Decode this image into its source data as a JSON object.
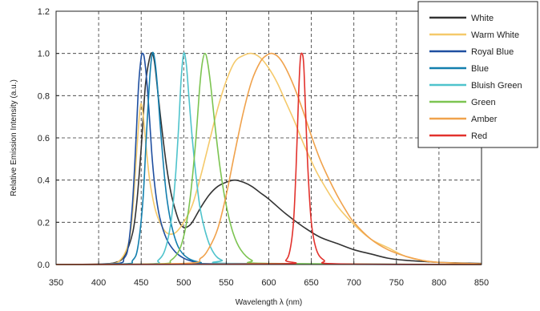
{
  "chart_data": {
    "type": "line",
    "xlabel": "Wavelength λ (nm)",
    "ylabel": "Relative Emission Intensity (a.u.)",
    "xlim": [
      350,
      850
    ],
    "ylim": [
      0,
      1.2
    ],
    "xticks": [
      350,
      400,
      450,
      500,
      550,
      600,
      650,
      700,
      750,
      800,
      850
    ],
    "xtick_labels": [
      "350",
      "400",
      "450",
      "500",
      "550",
      "600",
      "650",
      "700",
      "750",
      "800",
      "850"
    ],
    "yticks": [
      0,
      0.2,
      0.4,
      0.6,
      0.8,
      1.0,
      1.2
    ],
    "ytick_labels": [
      "0.0",
      "0.2",
      "0.4",
      "0.6",
      "0.8",
      "1.0",
      "1.2"
    ],
    "grid": true,
    "legend_position": "top-right",
    "series": [
      {
        "name": "White",
        "color": "#333333",
        "x": [
          350,
          400,
          420,
          430,
          440,
          445,
          450,
          455,
          460,
          463,
          466,
          470,
          475,
          480,
          485,
          490,
          495,
          500,
          505,
          510,
          520,
          530,
          540,
          550,
          560,
          570,
          580,
          590,
          600,
          620,
          640,
          660,
          680,
          700,
          720,
          740,
          760,
          780,
          800,
          850
        ],
        "y": [
          0.0,
          0.002,
          0.01,
          0.04,
          0.15,
          0.3,
          0.55,
          0.85,
          0.98,
          1.0,
          0.95,
          0.8,
          0.62,
          0.46,
          0.34,
          0.26,
          0.2,
          0.175,
          0.18,
          0.2,
          0.27,
          0.33,
          0.37,
          0.39,
          0.4,
          0.39,
          0.37,
          0.34,
          0.31,
          0.24,
          0.18,
          0.13,
          0.1,
          0.07,
          0.05,
          0.03,
          0.02,
          0.015,
          0.01,
          0.005
        ]
      },
      {
        "name": "Warm White",
        "color": "#f5c96a",
        "x": [
          350,
          410,
          425,
          435,
          440,
          445,
          449,
          452,
          456,
          460,
          466,
          472,
          480,
          490,
          500,
          510,
          520,
          530,
          540,
          550,
          560,
          570,
          580,
          590,
          600,
          610,
          620,
          630,
          640,
          650,
          660,
          680,
          700,
          720,
          740,
          760,
          780,
          800,
          850
        ],
        "y": [
          0.0,
          0.003,
          0.02,
          0.1,
          0.25,
          0.55,
          0.75,
          0.72,
          0.55,
          0.4,
          0.27,
          0.2,
          0.15,
          0.15,
          0.2,
          0.28,
          0.42,
          0.58,
          0.74,
          0.87,
          0.96,
          0.99,
          1.0,
          0.98,
          0.93,
          0.86,
          0.77,
          0.68,
          0.58,
          0.49,
          0.41,
          0.28,
          0.19,
          0.12,
          0.08,
          0.04,
          0.02,
          0.01,
          0.003
        ]
      },
      {
        "name": "Royal Blue",
        "color": "#1f4fa0",
        "x": [
          350,
          420,
          430,
          435,
          440,
          444,
          447,
          450,
          452,
          454,
          457,
          460,
          463,
          467,
          472,
          480,
          490,
          500,
          510,
          520,
          540,
          850
        ],
        "y": [
          0.0,
          0.004,
          0.03,
          0.09,
          0.3,
          0.6,
          0.85,
          0.98,
          1.0,
          0.97,
          0.85,
          0.68,
          0.5,
          0.34,
          0.22,
          0.12,
          0.06,
          0.03,
          0.015,
          0.008,
          0.003,
          0.0
        ]
      },
      {
        "name": "Blue",
        "color": "#137fae",
        "x": [
          350,
          430,
          440,
          446,
          452,
          456,
          460,
          463,
          466,
          469,
          472,
          476,
          480,
          486,
          494,
          505,
          520,
          540,
          850
        ],
        "y": [
          0.0,
          0.003,
          0.02,
          0.08,
          0.3,
          0.6,
          0.88,
          1.0,
          0.97,
          0.85,
          0.68,
          0.48,
          0.32,
          0.18,
          0.08,
          0.03,
          0.01,
          0.003,
          0.0
        ]
      },
      {
        "name": "Bluish Green",
        "color": "#4fc3cc",
        "x": [
          350,
          460,
          470,
          478,
          485,
          490,
          494,
          497,
          500,
          503,
          506,
          510,
          515,
          520,
          528,
          536,
          545,
          560,
          850
        ],
        "y": [
          0.0,
          0.003,
          0.02,
          0.07,
          0.2,
          0.4,
          0.65,
          0.88,
          1.0,
          0.95,
          0.8,
          0.6,
          0.4,
          0.25,
          0.12,
          0.05,
          0.02,
          0.005,
          0.0
        ]
      },
      {
        "name": "Green",
        "color": "#7cc451",
        "x": [
          350,
          470,
          485,
          495,
          502,
          508,
          514,
          519,
          522,
          525,
          528,
          532,
          537,
          543,
          550,
          558,
          567,
          580,
          600,
          850
        ],
        "y": [
          0.0,
          0.003,
          0.02,
          0.07,
          0.17,
          0.33,
          0.58,
          0.85,
          0.96,
          1.0,
          0.96,
          0.84,
          0.65,
          0.45,
          0.28,
          0.15,
          0.07,
          0.02,
          0.005,
          0.0
        ]
      },
      {
        "name": "Amber",
        "color": "#f0a24c",
        "x": [
          350,
          500,
          520,
          530,
          540,
          550,
          560,
          570,
          580,
          590,
          597,
          604,
          612,
          620,
          630,
          640,
          650,
          660,
          670,
          680,
          690,
          700,
          720,
          740,
          760,
          780,
          800,
          850
        ],
        "y": [
          0.0,
          0.005,
          0.03,
          0.08,
          0.17,
          0.33,
          0.53,
          0.72,
          0.87,
          0.96,
          0.99,
          1.0,
          0.98,
          0.93,
          0.84,
          0.73,
          0.61,
          0.5,
          0.41,
          0.33,
          0.26,
          0.2,
          0.12,
          0.07,
          0.04,
          0.02,
          0.01,
          0.003
        ]
      },
      {
        "name": "Red",
        "color": "#e2322d",
        "x": [
          350,
          610,
          620,
          625,
          629,
          632,
          635,
          637,
          639,
          641,
          643,
          646,
          650,
          656,
          665,
          680,
          850
        ],
        "y": [
          0.0,
          0.003,
          0.02,
          0.07,
          0.2,
          0.45,
          0.8,
          0.97,
          1.0,
          0.95,
          0.75,
          0.45,
          0.2,
          0.07,
          0.02,
          0.003,
          0.0
        ]
      }
    ]
  }
}
